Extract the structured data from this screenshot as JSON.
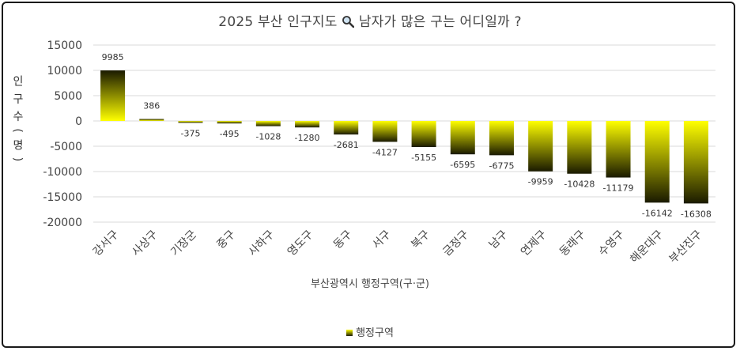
{
  "chart_data": {
    "type": "bar",
    "title": "2025 부산 인구지도 남자가 많은 구는 어디일까 ?",
    "title_icon": "magnifier-icon",
    "xlabel": "부산광역시 행정구역(구·군)",
    "ylabel": "인 구 수 ( 명 )",
    "legend": "행정구역",
    "legend_position": "bottom",
    "grid": true,
    "ylim": [
      -20000,
      15000
    ],
    "yticks": [
      "15000",
      "10000",
      "5000",
      "0",
      "-5000",
      "-10000",
      "-15000",
      "-20000"
    ],
    "categories": [
      "강서구",
      "사상구",
      "기장군",
      "중구",
      "사하구",
      "영도구",
      "동구",
      "서구",
      "북구",
      "금정구",
      "남구",
      "연제구",
      "동래구",
      "수영구",
      "해운대구",
      "부산진구"
    ],
    "values": [
      9985,
      386,
      -375,
      -495,
      -1028,
      -1280,
      -2681,
      -4127,
      -5155,
      -6595,
      -6775,
      -9959,
      -10428,
      -11179,
      -16142,
      -16308
    ],
    "bar_color_top": "#ffff00",
    "bar_color_bottom": "#1a1a00"
  }
}
